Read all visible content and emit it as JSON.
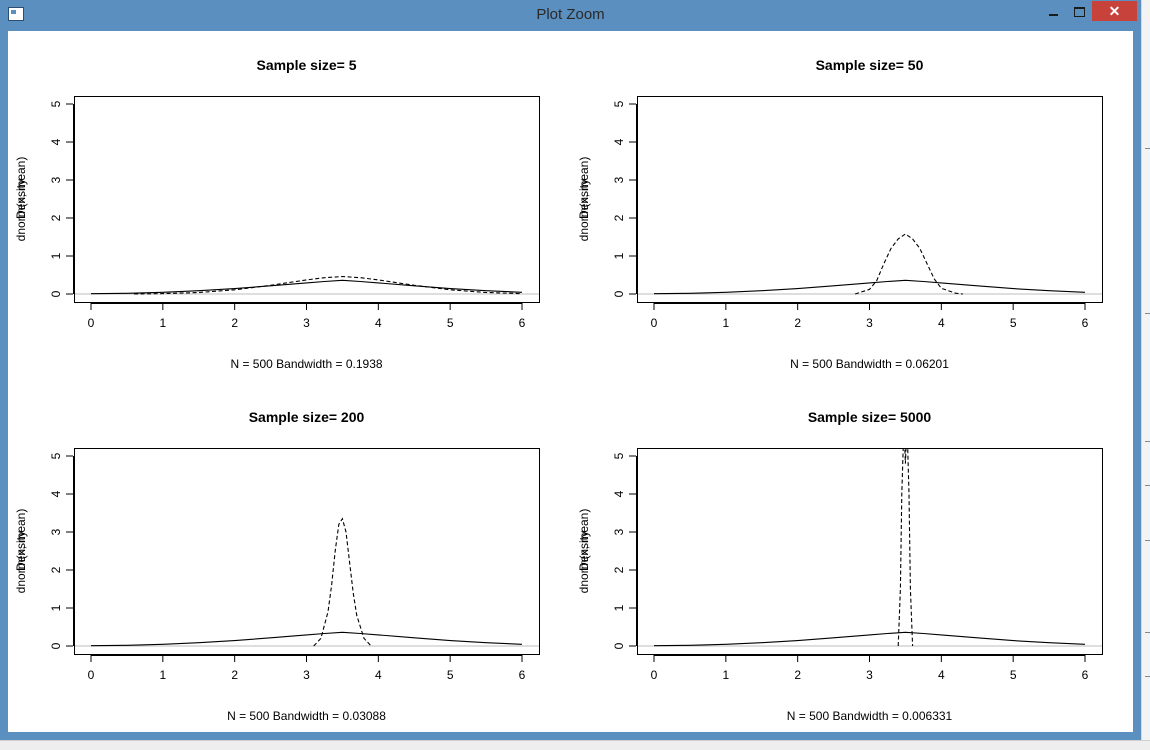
{
  "window": {
    "title": "Plot Zoom",
    "minimize_label": "",
    "close_label": "✕"
  },
  "chart_data": [
    {
      "type": "line",
      "title": "Sample size= 5",
      "xlabel": "N = 500   Bandwidth = 0.1938",
      "ylabel_overlap": [
        "dnorm(x, mean)",
        "Density"
      ],
      "xlim": [
        0,
        6
      ],
      "ylim": [
        0,
        5
      ],
      "x_ticks": [
        0,
        1,
        2,
        3,
        4,
        5,
        6
      ],
      "y_ticks": [
        0,
        1,
        2,
        3,
        4,
        5
      ],
      "series": [
        {
          "style": "solid",
          "x": [
            0,
            0.5,
            1,
            1.5,
            2,
            2.5,
            3,
            3.25,
            3.5,
            3.75,
            4,
            4.5,
            5,
            5.5,
            6
          ],
          "values": [
            0.008,
            0.019,
            0.045,
            0.086,
            0.143,
            0.217,
            0.292,
            0.33,
            0.36,
            0.33,
            0.292,
            0.217,
            0.143,
            0.086,
            0.045
          ]
        },
        {
          "style": "dashed",
          "x": [
            0.6,
            1,
            1.5,
            2,
            2.5,
            3,
            3.25,
            3.5,
            3.75,
            4,
            4.5,
            5,
            5.5,
            6
          ],
          "values": [
            0.0,
            0.01,
            0.04,
            0.11,
            0.23,
            0.37,
            0.43,
            0.46,
            0.43,
            0.37,
            0.23,
            0.11,
            0.04,
            0.01
          ]
        }
      ]
    },
    {
      "type": "line",
      "title": "Sample size= 50",
      "xlabel": "N = 500   Bandwidth = 0.06201",
      "ylabel_overlap": [
        "dnorm(x, mean)",
        "Density"
      ],
      "xlim": [
        0,
        6
      ],
      "ylim": [
        0,
        5
      ],
      "x_ticks": [
        0,
        1,
        2,
        3,
        4,
        5,
        6
      ],
      "y_ticks": [
        0,
        1,
        2,
        3,
        4,
        5
      ],
      "series": [
        {
          "style": "solid",
          "x": [
            0,
            0.5,
            1,
            1.5,
            2,
            2.5,
            3,
            3.25,
            3.5,
            3.75,
            4,
            4.5,
            5,
            5.5,
            6
          ],
          "values": [
            0.008,
            0.019,
            0.045,
            0.086,
            0.143,
            0.217,
            0.292,
            0.33,
            0.36,
            0.33,
            0.292,
            0.217,
            0.143,
            0.086,
            0.045
          ]
        },
        {
          "style": "dashed",
          "x": [
            2.8,
            3.0,
            3.1,
            3.2,
            3.3,
            3.4,
            3.5,
            3.6,
            3.7,
            3.8,
            3.9,
            4.0,
            4.2,
            4.3
          ],
          "values": [
            0.0,
            0.12,
            0.35,
            0.8,
            1.2,
            1.45,
            1.58,
            1.45,
            1.2,
            0.8,
            0.4,
            0.15,
            0.02,
            0.0
          ]
        }
      ]
    },
    {
      "type": "line",
      "title": "Sample size= 200",
      "xlabel": "N = 500   Bandwidth = 0.03088",
      "ylabel_overlap": [
        "dnorm(x, mean)",
        "Density"
      ],
      "xlim": [
        0,
        6
      ],
      "ylim": [
        0,
        5
      ],
      "x_ticks": [
        0,
        1,
        2,
        3,
        4,
        5,
        6
      ],
      "y_ticks": [
        0,
        1,
        2,
        3,
        4,
        5
      ],
      "series": [
        {
          "style": "solid",
          "x": [
            0,
            0.5,
            1,
            1.5,
            2,
            2.5,
            3,
            3.25,
            3.5,
            3.75,
            4,
            4.5,
            5,
            5.5,
            6
          ],
          "values": [
            0.008,
            0.019,
            0.045,
            0.086,
            0.143,
            0.217,
            0.292,
            0.33,
            0.36,
            0.33,
            0.292,
            0.217,
            0.143,
            0.086,
            0.045
          ]
        },
        {
          "style": "dashed",
          "x": [
            3.1,
            3.2,
            3.3,
            3.35,
            3.4,
            3.45,
            3.5,
            3.55,
            3.6,
            3.65,
            3.7,
            3.8,
            3.9
          ],
          "values": [
            0.0,
            0.2,
            0.9,
            1.6,
            2.5,
            3.2,
            3.35,
            3.0,
            2.2,
            1.4,
            0.8,
            0.2,
            0.0
          ]
        }
      ]
    },
    {
      "type": "line",
      "title": "Sample size= 5000",
      "xlabel": "N = 500   Bandwidth = 0.006331",
      "ylabel_overlap": [
        "dnorm(x, mean)",
        "Density"
      ],
      "xlim": [
        0,
        6
      ],
      "ylim": [
        0,
        5
      ],
      "x_ticks": [
        0,
        1,
        2,
        3,
        4,
        5,
        6
      ],
      "y_ticks": [
        0,
        1,
        2,
        3,
        4,
        5
      ],
      "series": [
        {
          "style": "solid",
          "x": [
            0,
            0.5,
            1,
            1.5,
            2,
            2.5,
            3,
            3.25,
            3.5,
            3.75,
            4,
            4.5,
            5,
            5.5,
            6
          ],
          "values": [
            0.008,
            0.019,
            0.045,
            0.086,
            0.143,
            0.217,
            0.292,
            0.33,
            0.36,
            0.33,
            0.292,
            0.217,
            0.143,
            0.086,
            0.045
          ]
        },
        {
          "style": "dashed",
          "x": [
            3.4,
            3.43,
            3.45,
            3.47,
            3.49,
            3.5,
            3.51,
            3.53,
            3.55,
            3.57,
            3.6
          ],
          "values": [
            0.0,
            1.5,
            4.0,
            5.3,
            5.3,
            4.8,
            5.3,
            5.3,
            4.0,
            1.5,
            0.0
          ]
        }
      ]
    }
  ]
}
